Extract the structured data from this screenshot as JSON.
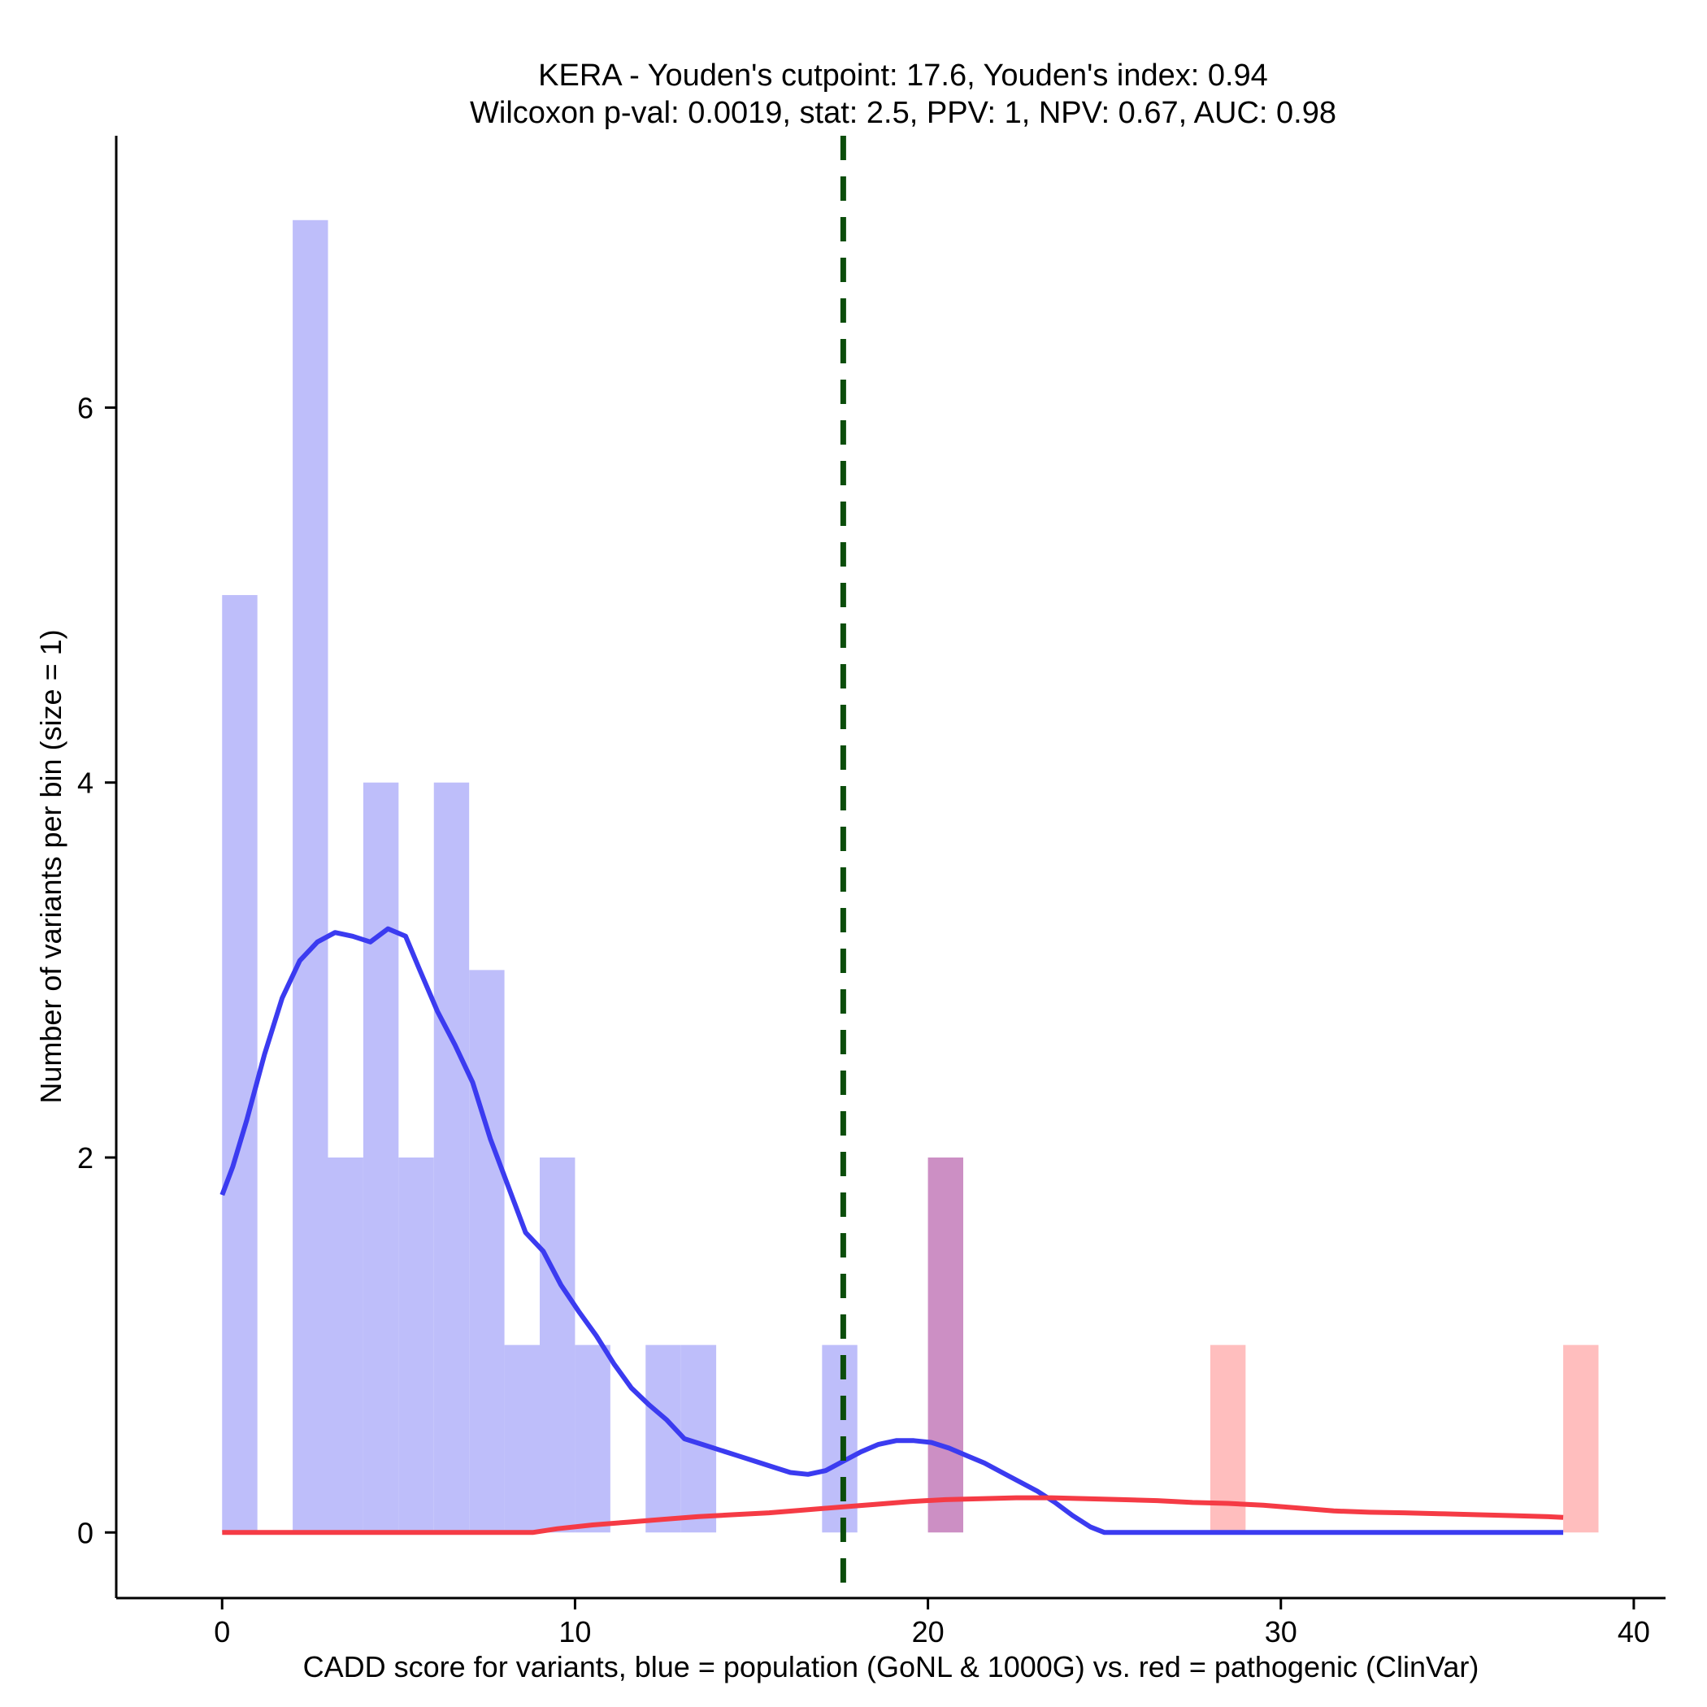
{
  "chart_data": {
    "type": "bar",
    "title_lines": [
      "KERA - Youden's cutpoint: 17.6, Youden's index: 0.94",
      "Wilcoxon p-val: 0.0019, stat: 2.5, PPV: 1, NPV: 0.67, AUC: 0.98"
    ],
    "xlabel": "CADD score for variants, blue = population (GoNL & 1000G) vs. red = pathogenic (ClinVar)",
    "ylabel": "Number of variants per bin (size = 1)",
    "xlim": [
      -3,
      40.9
    ],
    "ylim": [
      -0.35,
      7.45
    ],
    "xticks": [
      0,
      10,
      20,
      30,
      40
    ],
    "yticks": [
      0,
      2,
      4,
      6
    ],
    "bin_width": 1,
    "cutpoint": 17.6,
    "colors": {
      "population_bar": "#bebefa",
      "pathogenic_bar": "#ffbebe",
      "overlap_bar": "#cc8fc4",
      "population_line": "#3b3bf0",
      "pathogenic_line": "#f53b45",
      "cutpoint_line": "#0b4d0b"
    },
    "series": [
      {
        "kind": "histogram",
        "group": "population",
        "bins": [
          {
            "x0": 0,
            "count": 5
          },
          {
            "x0": 2,
            "count": 7
          },
          {
            "x0": 3,
            "count": 2
          },
          {
            "x0": 4,
            "count": 4
          },
          {
            "x0": 5,
            "count": 2
          },
          {
            "x0": 6,
            "count": 4
          },
          {
            "x0": 7,
            "count": 3
          },
          {
            "x0": 8,
            "count": 1
          },
          {
            "x0": 9,
            "count": 2
          },
          {
            "x0": 10,
            "count": 1
          },
          {
            "x0": 12,
            "count": 1
          },
          {
            "x0": 13,
            "count": 1
          },
          {
            "x0": 17,
            "count": 1
          },
          {
            "x0": 20,
            "count": 2
          }
        ]
      },
      {
        "kind": "histogram",
        "group": "pathogenic",
        "bins": [
          {
            "x0": 20,
            "count": 2
          },
          {
            "x0": 28,
            "count": 1
          },
          {
            "x0": 38,
            "count": 1
          }
        ]
      },
      {
        "kind": "density",
        "group": "population",
        "points": [
          [
            0,
            1.8
          ],
          [
            0.3,
            1.95
          ],
          [
            0.7,
            2.2
          ],
          [
            1.2,
            2.55
          ],
          [
            1.7,
            2.85
          ],
          [
            2.2,
            3.05
          ],
          [
            2.7,
            3.15
          ],
          [
            3.2,
            3.2
          ],
          [
            3.7,
            3.18
          ],
          [
            4.2,
            3.15
          ],
          [
            4.7,
            3.22
          ],
          [
            5.2,
            3.18
          ],
          [
            5.6,
            3.0
          ],
          [
            6.1,
            2.78
          ],
          [
            6.6,
            2.6
          ],
          [
            7.1,
            2.4
          ],
          [
            7.6,
            2.1
          ],
          [
            8.1,
            1.85
          ],
          [
            8.6,
            1.6
          ],
          [
            9.1,
            1.5
          ],
          [
            9.6,
            1.32
          ],
          [
            10.1,
            1.18
          ],
          [
            10.6,
            1.05
          ],
          [
            11.1,
            0.9
          ],
          [
            11.6,
            0.77
          ],
          [
            12.1,
            0.68
          ],
          [
            12.6,
            0.6
          ],
          [
            13.1,
            0.5
          ],
          [
            13.6,
            0.47
          ],
          [
            14.1,
            0.44
          ],
          [
            14.6,
            0.41
          ],
          [
            15.1,
            0.38
          ],
          [
            15.6,
            0.35
          ],
          [
            16.1,
            0.32
          ],
          [
            16.6,
            0.31
          ],
          [
            17.1,
            0.33
          ],
          [
            17.6,
            0.38
          ],
          [
            18.1,
            0.43
          ],
          [
            18.6,
            0.47
          ],
          [
            19.1,
            0.49
          ],
          [
            19.6,
            0.49
          ],
          [
            20.1,
            0.48
          ],
          [
            20.6,
            0.45
          ],
          [
            21.1,
            0.41
          ],
          [
            21.6,
            0.37
          ],
          [
            22.1,
            0.32
          ],
          [
            22.6,
            0.27
          ],
          [
            23.1,
            0.22
          ],
          [
            23.6,
            0.16
          ],
          [
            24.1,
            0.09
          ],
          [
            24.6,
            0.03
          ],
          [
            25.0,
            0.0
          ],
          [
            26,
            0
          ],
          [
            28,
            0
          ],
          [
            30,
            0
          ],
          [
            32,
            0
          ],
          [
            34,
            0
          ],
          [
            36,
            0
          ],
          [
            38,
            0
          ]
        ]
      },
      {
        "kind": "density",
        "group": "pathogenic",
        "points": [
          [
            0,
            0
          ],
          [
            2,
            0
          ],
          [
            4,
            0
          ],
          [
            6,
            0
          ],
          [
            8,
            0
          ],
          [
            8.8,
            0.0
          ],
          [
            9.5,
            0.02
          ],
          [
            10.5,
            0.04
          ],
          [
            11.5,
            0.055
          ],
          [
            12.5,
            0.07
          ],
          [
            13.5,
            0.085
          ],
          [
            14.5,
            0.095
          ],
          [
            15.5,
            0.105
          ],
          [
            16.5,
            0.12
          ],
          [
            17.5,
            0.135
          ],
          [
            18.5,
            0.15
          ],
          [
            19.5,
            0.165
          ],
          [
            20.5,
            0.175
          ],
          [
            21.5,
            0.18
          ],
          [
            22.5,
            0.185
          ],
          [
            23.5,
            0.185
          ],
          [
            24.5,
            0.18
          ],
          [
            25.5,
            0.175
          ],
          [
            26.5,
            0.17
          ],
          [
            27.5,
            0.16
          ],
          [
            28.5,
            0.155
          ],
          [
            29.5,
            0.145
          ],
          [
            30.5,
            0.13
          ],
          [
            31.5,
            0.115
          ],
          [
            32.5,
            0.108
          ],
          [
            33.5,
            0.105
          ],
          [
            34.5,
            0.1
          ],
          [
            35.5,
            0.095
          ],
          [
            36.5,
            0.09
          ],
          [
            37.5,
            0.085
          ],
          [
            38,
            0.08
          ]
        ]
      }
    ]
  }
}
